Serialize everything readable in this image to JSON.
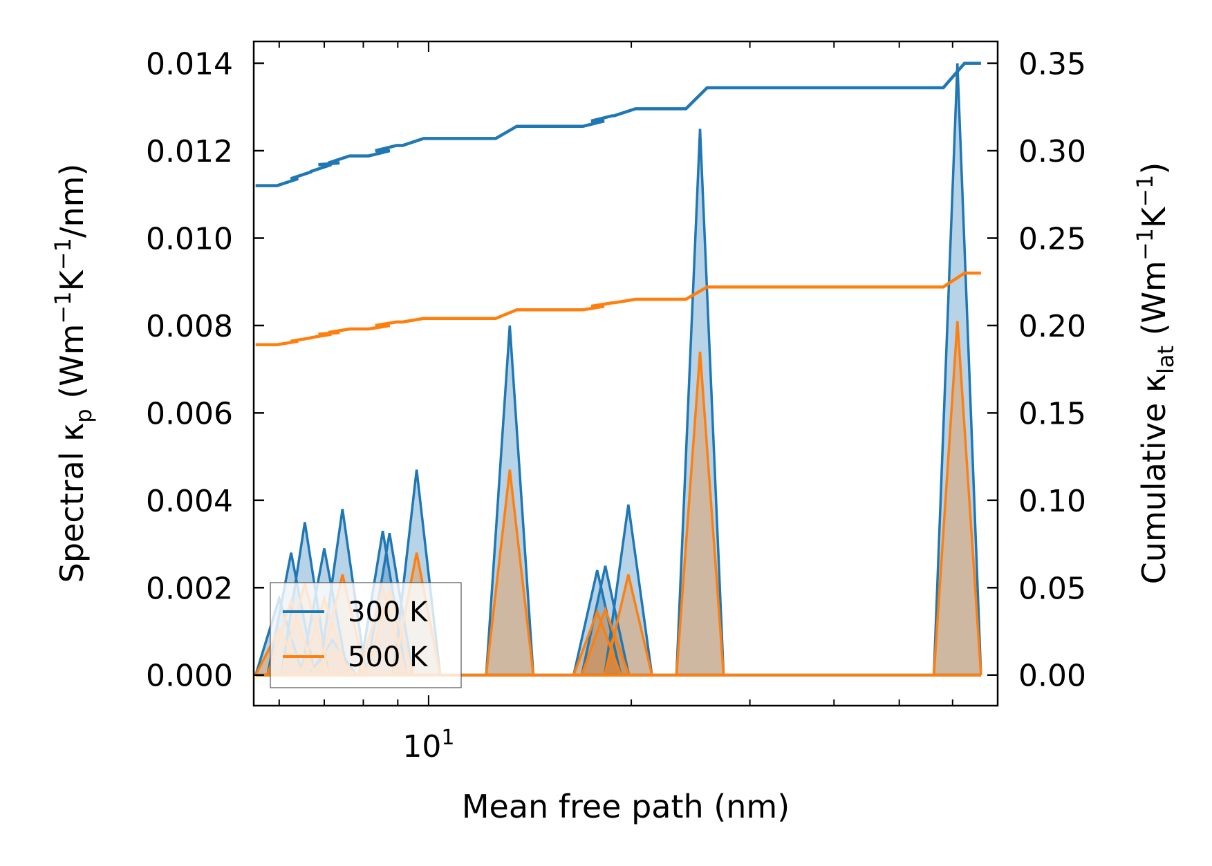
{
  "chart_data": {
    "type": "line",
    "xlabel": "Mean free path (nm)",
    "xscale": "log",
    "xlim": [
      5.5,
      70
    ],
    "x_tick_labels": [
      {
        "value": 10,
        "base": "10",
        "exp": "1"
      }
    ],
    "left_axis": {
      "label_parts": [
        {
          "t": "Spectral κ",
          "s": "n"
        },
        {
          "t": "p",
          "s": "sub"
        },
        {
          "t": " (Wm",
          "s": "n"
        },
        {
          "t": "−1",
          "s": "sup"
        },
        {
          "t": "K",
          "s": "n"
        },
        {
          "t": "−1",
          "s": "sup"
        },
        {
          "t": "/nm)",
          "s": "n"
        }
      ],
      "ylim": [
        -0.0007,
        0.0145
      ],
      "ticks": [
        0.0,
        0.002,
        0.004,
        0.006,
        0.008,
        0.01,
        0.012,
        0.014
      ],
      "tick_labels": [
        "0.000",
        "0.002",
        "0.004",
        "0.006",
        "0.008",
        "0.010",
        "0.012",
        "0.014"
      ]
    },
    "right_axis": {
      "label_parts": [
        {
          "t": "Cumulative κ",
          "s": "n"
        },
        {
          "t": "lat",
          "s": "sub"
        },
        {
          "t": " (Wm",
          "s": "n"
        },
        {
          "t": "−1",
          "s": "sup"
        },
        {
          "t": "K",
          "s": "n"
        },
        {
          "t": "−1",
          "s": "sup"
        },
        {
          "t": ")",
          "s": "n"
        }
      ],
      "ylim": [
        -0.0175,
        0.3625
      ],
      "ticks": [
        0.0,
        0.05,
        0.1,
        0.15,
        0.2,
        0.25,
        0.3,
        0.35
      ],
      "tick_labels": [
        "0.00",
        "0.05",
        "0.10",
        "0.15",
        "0.20",
        "0.25",
        "0.30",
        "0.35"
      ]
    },
    "series": [
      {
        "name": "300 K",
        "color": "#1f77b4",
        "spectral_peaks": [
          {
            "x": 6.0,
            "y": 0.00175
          },
          {
            "x": 6.25,
            "y": 0.0028
          },
          {
            "x": 6.55,
            "y": 0.0035
          },
          {
            "x": 7.0,
            "y": 0.0029
          },
          {
            "x": 7.2,
            "y": 0.0008
          },
          {
            "x": 7.45,
            "y": 0.0038
          },
          {
            "x": 8.55,
            "y": 0.0033
          },
          {
            "x": 8.75,
            "y": 0.00325
          },
          {
            "x": 9.6,
            "y": 0.0047
          },
          {
            "x": 13.2,
            "y": 0.008
          },
          {
            "x": 17.8,
            "y": 0.0024
          },
          {
            "x": 18.3,
            "y": 0.0025
          },
          {
            "x": 19.8,
            "y": 0.0039
          },
          {
            "x": 25.3,
            "y": 0.0125
          },
          {
            "x": 61.0,
            "y": 0.014
          }
        ],
        "cumulative": [
          {
            "x": 6.0,
            "y": 0.28
          },
          {
            "x": 6.25,
            "y": 0.284
          },
          {
            "x": 6.55,
            "y": 0.288
          },
          {
            "x": 7.0,
            "y": 0.292
          },
          {
            "x": 7.2,
            "y": 0.293
          },
          {
            "x": 7.45,
            "y": 0.297
          },
          {
            "x": 8.55,
            "y": 0.3
          },
          {
            "x": 8.75,
            "y": 0.303
          },
          {
            "x": 9.6,
            "y": 0.307
          },
          {
            "x": 13.2,
            "y": 0.314
          },
          {
            "x": 17.8,
            "y": 0.317
          },
          {
            "x": 18.3,
            "y": 0.32
          },
          {
            "x": 19.8,
            "y": 0.324
          },
          {
            "x": 25.3,
            "y": 0.336
          },
          {
            "x": 61.0,
            "y": 0.35
          }
        ]
      },
      {
        "name": "500 K",
        "color": "#ff7f0e",
        "spectral_peaks": [
          {
            "x": 6.0,
            "y": 0.00105
          },
          {
            "x": 6.25,
            "y": 0.0017
          },
          {
            "x": 6.55,
            "y": 0.0021
          },
          {
            "x": 7.0,
            "y": 0.00175
          },
          {
            "x": 7.2,
            "y": 0.0005
          },
          {
            "x": 7.45,
            "y": 0.0023
          },
          {
            "x": 8.55,
            "y": 0.002
          },
          {
            "x": 8.75,
            "y": 0.00195
          },
          {
            "x": 9.6,
            "y": 0.0028
          },
          {
            "x": 13.2,
            "y": 0.0047
          },
          {
            "x": 17.8,
            "y": 0.00145
          },
          {
            "x": 18.3,
            "y": 0.0015
          },
          {
            "x": 19.8,
            "y": 0.0023
          },
          {
            "x": 25.3,
            "y": 0.0074
          },
          {
            "x": 61.0,
            "y": 0.0081
          }
        ],
        "cumulative": [
          {
            "x": 6.0,
            "y": 0.189
          },
          {
            "x": 6.25,
            "y": 0.191
          },
          {
            "x": 6.55,
            "y": 0.193
          },
          {
            "x": 7.0,
            "y": 0.195
          },
          {
            "x": 7.2,
            "y": 0.196
          },
          {
            "x": 7.45,
            "y": 0.198
          },
          {
            "x": 8.55,
            "y": 0.2
          },
          {
            "x": 8.75,
            "y": 0.202
          },
          {
            "x": 9.6,
            "y": 0.204
          },
          {
            "x": 13.2,
            "y": 0.209
          },
          {
            "x": 17.8,
            "y": 0.211
          },
          {
            "x": 18.3,
            "y": 0.213
          },
          {
            "x": 19.8,
            "y": 0.215
          },
          {
            "x": 25.3,
            "y": 0.222
          },
          {
            "x": 61.0,
            "y": 0.23
          }
        ]
      }
    ],
    "legend": {
      "location": "lower-left",
      "entries": [
        "300 K",
        "500 K"
      ]
    }
  }
}
